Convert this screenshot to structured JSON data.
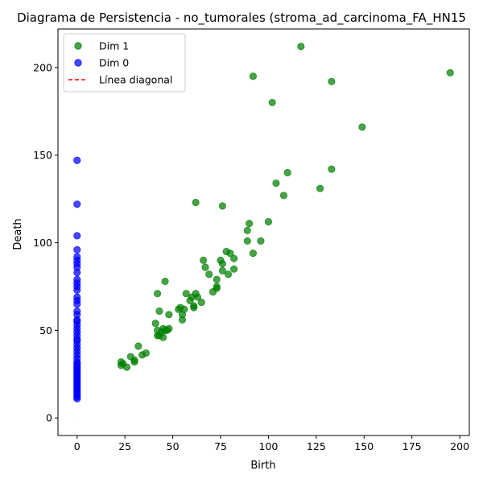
{
  "chart_data": {
    "type": "scatter",
    "title": "Diagrama de Persistencia - no_tumorales (stroma_ad_carcinoma_FA_HN15",
    "xlabel": "Birth",
    "ylabel": "Death",
    "xlim": [
      -10,
      205
    ],
    "ylim": [
      -10,
      222
    ],
    "xticks": [
      0,
      25,
      50,
      75,
      100,
      125,
      150,
      175,
      200
    ],
    "yticks": [
      0,
      50,
      100,
      150,
      200
    ],
    "grid": false,
    "legend_position": "top-left",
    "legend": [
      "Dim 1",
      "Dim 0",
      "Línea diagonal"
    ],
    "series": [
      {
        "name": "Dim 1",
        "color": "#008000",
        "points": [
          [
            23,
            32
          ],
          [
            23,
            30
          ],
          [
            24,
            31
          ],
          [
            26,
            29
          ],
          [
            28,
            35
          ],
          [
            30,
            32
          ],
          [
            30,
            33
          ],
          [
            32,
            41
          ],
          [
            34,
            36
          ],
          [
            36,
            37
          ],
          [
            41,
            54
          ],
          [
            42,
            50
          ],
          [
            42,
            47
          ],
          [
            42,
            71
          ],
          [
            43,
            61
          ],
          [
            43,
            47
          ],
          [
            44,
            49
          ],
          [
            45,
            46
          ],
          [
            45,
            51
          ],
          [
            46,
            50
          ],
          [
            46,
            78
          ],
          [
            47,
            50
          ],
          [
            48,
            51
          ],
          [
            48,
            59
          ],
          [
            53,
            62
          ],
          [
            54,
            63
          ],
          [
            55,
            59
          ],
          [
            55,
            56
          ],
          [
            56,
            62
          ],
          [
            57,
            71
          ],
          [
            59,
            67
          ],
          [
            60,
            69
          ],
          [
            61,
            63
          ],
          [
            61,
            64
          ],
          [
            62,
            71
          ],
          [
            62,
            123
          ],
          [
            63,
            69
          ],
          [
            65,
            66
          ],
          [
            66,
            90
          ],
          [
            67,
            86
          ],
          [
            69,
            82
          ],
          [
            71,
            72
          ],
          [
            73,
            74
          ],
          [
            73,
            75
          ],
          [
            73,
            79
          ],
          [
            75,
            90
          ],
          [
            76,
            84
          ],
          [
            76,
            121
          ],
          [
            76,
            88
          ],
          [
            78,
            95
          ],
          [
            79,
            82
          ],
          [
            80,
            94
          ],
          [
            82,
            85
          ],
          [
            82,
            91
          ],
          [
            89,
            101
          ],
          [
            89,
            107
          ],
          [
            90,
            111
          ],
          [
            92,
            195
          ],
          [
            92,
            94
          ],
          [
            96,
            101
          ],
          [
            100,
            112
          ],
          [
            102,
            180
          ],
          [
            104,
            134
          ],
          [
            108,
            127
          ],
          [
            110,
            140
          ],
          [
            117,
            212
          ],
          [
            127,
            131
          ],
          [
            133,
            192
          ],
          [
            133,
            142
          ],
          [
            149,
            166
          ],
          [
            195,
            197
          ]
        ]
      },
      {
        "name": "Dim 0",
        "color": "#0000ff",
        "points": [
          [
            0,
            147
          ],
          [
            0,
            122
          ],
          [
            0,
            104
          ],
          [
            0,
            96
          ],
          [
            0,
            92
          ],
          [
            0,
            90
          ],
          [
            0,
            88
          ],
          [
            0,
            86
          ],
          [
            0,
            83
          ],
          [
            0,
            79
          ],
          [
            0,
            77
          ],
          [
            0,
            75
          ],
          [
            0,
            73
          ],
          [
            0,
            69
          ],
          [
            0,
            67
          ],
          [
            0,
            65
          ],
          [
            0,
            61
          ],
          [
            0,
            59
          ],
          [
            0,
            56
          ],
          [
            0,
            55
          ],
          [
            0,
            53
          ],
          [
            0,
            51
          ],
          [
            0,
            49
          ],
          [
            0,
            47
          ],
          [
            0,
            45
          ],
          [
            0,
            44
          ],
          [
            0,
            42
          ],
          [
            0,
            40
          ],
          [
            0,
            38
          ],
          [
            0,
            36
          ],
          [
            0,
            34
          ],
          [
            0,
            32
          ],
          [
            0,
            31
          ],
          [
            0,
            30
          ],
          [
            0,
            29
          ],
          [
            0,
            28
          ],
          [
            0,
            27
          ],
          [
            0,
            26
          ],
          [
            0,
            25
          ],
          [
            0,
            24
          ],
          [
            0,
            23
          ],
          [
            0,
            22
          ],
          [
            0,
            21
          ],
          [
            0,
            20
          ],
          [
            0,
            19
          ],
          [
            0,
            18
          ],
          [
            0,
            17
          ],
          [
            0,
            16
          ],
          [
            0,
            15
          ],
          [
            0,
            14
          ],
          [
            0,
            13
          ],
          [
            0,
            12
          ],
          [
            0,
            11
          ]
        ]
      }
    ],
    "diagonal": {
      "name": "Línea diagonal",
      "color": "#ff0000",
      "style": "dashed"
    }
  }
}
